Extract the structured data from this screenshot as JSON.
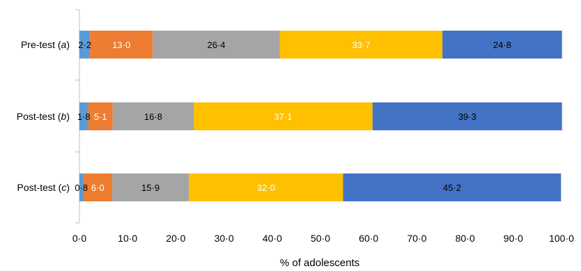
{
  "chart_data": {
    "type": "bar",
    "orientation": "horizontal",
    "stacked": true,
    "categories": [
      {
        "prefix": "Pre-test (",
        "letter": "a",
        "suffix": ")"
      },
      {
        "prefix": "Post-test (",
        "letter": "b",
        "suffix": ")"
      },
      {
        "prefix": "Post-test (",
        "letter": "c",
        "suffix": ")"
      }
    ],
    "series": [
      {
        "color": "#5B9BD5",
        "label_color": "#000000",
        "values": [
          2.2,
          1.8,
          0.8
        ],
        "labels": [
          "2·2",
          "1·8",
          "0·8"
        ]
      },
      {
        "color": "#ED7D31",
        "label_color": "#ffffff",
        "values": [
          13.0,
          5.1,
          6.0
        ],
        "labels": [
          "13·0",
          "5·1",
          "6·0"
        ]
      },
      {
        "color": "#A5A5A5",
        "label_color": "#000000",
        "values": [
          26.4,
          16.8,
          15.9
        ],
        "labels": [
          "26·4",
          "16·8",
          "15·9"
        ]
      },
      {
        "color": "#FFC000",
        "label_color": "#ffffff",
        "values": [
          33.7,
          37.1,
          32.0
        ],
        "labels": [
          "33·7",
          "37·1",
          "32·0"
        ]
      },
      {
        "color": "#4472C4",
        "label_color": "#000000",
        "values": [
          24.8,
          39.3,
          45.2
        ],
        "labels": [
          "24·8",
          "39·3",
          "45·2"
        ]
      }
    ],
    "xlim": [
      0,
      100
    ],
    "xticks": [
      0,
      10,
      20,
      30,
      40,
      50,
      60,
      70,
      80,
      90,
      100
    ],
    "xtick_labels": [
      "0·0",
      "10·0",
      "20·0",
      "30·0",
      "40·0",
      "50·0",
      "60·0",
      "70·0",
      "80·0",
      "90·0",
      "100·0"
    ],
    "xlabel": "% of adolescents",
    "ylabel": "",
    "title": "",
    "grid": false,
    "legend": false
  }
}
